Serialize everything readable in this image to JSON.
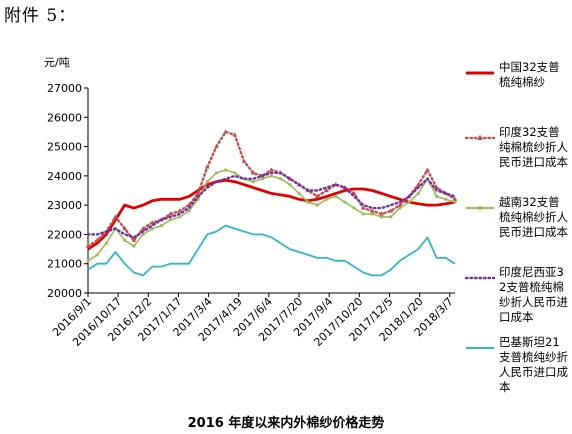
{
  "header": {
    "attachment_label": "附件 5："
  },
  "caption": "2016 年度以来内外棉纱价格走势",
  "chart_data": {
    "type": "line",
    "title": "",
    "unit_label": "元/吨",
    "xlabel": "",
    "ylabel": "",
    "ylim": [
      20000,
      27000
    ],
    "yticks": [
      20000,
      21000,
      22000,
      23000,
      24000,
      25000,
      26000,
      27000
    ],
    "x_tick_labels": [
      "2016/9/1",
      "2016/10/17",
      "2016/12/2",
      "2017/1/17",
      "2017/3/4",
      "2017/4/19",
      "2017/6/4",
      "2017/7/20",
      "2017/9/4",
      "2017/10/20",
      "2017/12/5",
      "2018/1/20",
      "2018/3/7"
    ],
    "x": [
      "2016/9/1",
      "2016/9/15",
      "2016/9/29",
      "2016/10/13",
      "2016/10/27",
      "2016/11/10",
      "2016/11/24",
      "2016/12/8",
      "2016/12/22",
      "2017/1/5",
      "2017/1/19",
      "2017/2/2",
      "2017/2/16",
      "2017/3/2",
      "2017/3/16",
      "2017/3/30",
      "2017/4/13",
      "2017/4/27",
      "2017/5/11",
      "2017/5/25",
      "2017/6/8",
      "2017/6/22",
      "2017/7/6",
      "2017/7/20",
      "2017/8/3",
      "2017/8/17",
      "2017/8/31",
      "2017/9/14",
      "2017/9/28",
      "2017/10/12",
      "2017/10/26",
      "2017/11/9",
      "2017/11/23",
      "2017/12/7",
      "2017/12/21",
      "2018/1/4",
      "2018/1/18",
      "2018/2/1",
      "2018/2/15",
      "2018/3/1",
      "2018/3/15"
    ],
    "grid": false,
    "legend_position": "right",
    "series": [
      {
        "name": "中国32支普梳纯棉纱",
        "color": "#e00000",
        "style": "solid",
        "values": [
          21500,
          21700,
          22000,
          22500,
          23000,
          22900,
          23000,
          23150,
          23200,
          23200,
          23200,
          23300,
          23500,
          23700,
          23800,
          23850,
          23800,
          23700,
          23600,
          23500,
          23400,
          23350,
          23300,
          23200,
          23150,
          23200,
          23300,
          23400,
          23500,
          23550,
          23550,
          23500,
          23400,
          23300,
          23200,
          23100,
          23050,
          23000,
          23000,
          23050,
          23100
        ]
      },
      {
        "name": "印度32支普纯棉梳纱折人民币进口成本",
        "color": "#c0504d",
        "style": "dotted-triangle",
        "values": [
          21600,
          21800,
          22100,
          22600,
          22200,
          21800,
          22200,
          22400,
          22500,
          22700,
          22800,
          23000,
          23400,
          24300,
          25000,
          25500,
          25400,
          24500,
          24100,
          24000,
          24200,
          24100,
          23900,
          23700,
          23500,
          23300,
          23500,
          23700,
          23600,
          23400,
          22900,
          22800,
          22700,
          22800,
          23000,
          23300,
          23700,
          24200,
          23600,
          23400,
          23200
        ]
      },
      {
        "name": "越南32支普梳纯棉纱折人民币进口成本",
        "color": "#9bbb59",
        "style": "solid-marker",
        "values": [
          21100,
          21300,
          21700,
          22200,
          21800,
          21600,
          22000,
          22200,
          22300,
          22500,
          22600,
          22800,
          23200,
          23800,
          24100,
          24200,
          24100,
          23900,
          23800,
          23900,
          24000,
          23900,
          23700,
          23400,
          23100,
          23000,
          23200,
          23300,
          23100,
          22900,
          22700,
          22700,
          22600,
          22600,
          22900,
          23100,
          23400,
          23900,
          23300,
          23200,
          23100
        ]
      },
      {
        "name": "印度尼西亚32支普梳纯棉纱折人民币进口成本",
        "color": "#7030a0",
        "style": "dotted",
        "values": [
          22000,
          22000,
          22100,
          22200,
          22000,
          21900,
          22100,
          22300,
          22500,
          22600,
          22700,
          22900,
          23300,
          23600,
          23800,
          23900,
          24000,
          23900,
          23900,
          24000,
          24100,
          24100,
          23900,
          23700,
          23500,
          23500,
          23600,
          23700,
          23600,
          23300,
          23000,
          22900,
          22900,
          23000,
          23100,
          23300,
          23600,
          23900,
          23500,
          23400,
          23300
        ]
      },
      {
        "name": "巴基斯坦21支普梳纯纱折人民币进口成本",
        "color": "#31b5cf",
        "style": "solid",
        "values": [
          20800,
          21000,
          21000,
          21400,
          21000,
          20700,
          20600,
          20900,
          20900,
          21000,
          21000,
          21000,
          21500,
          22000,
          22100,
          22300,
          22200,
          22100,
          22000,
          22000,
          21900,
          21700,
          21500,
          21400,
          21300,
          21200,
          21200,
          21100,
          21100,
          20900,
          20700,
          20600,
          20600,
          20800,
          21100,
          21300,
          21500,
          21900,
          21200,
          21200,
          21000
        ]
      }
    ]
  }
}
